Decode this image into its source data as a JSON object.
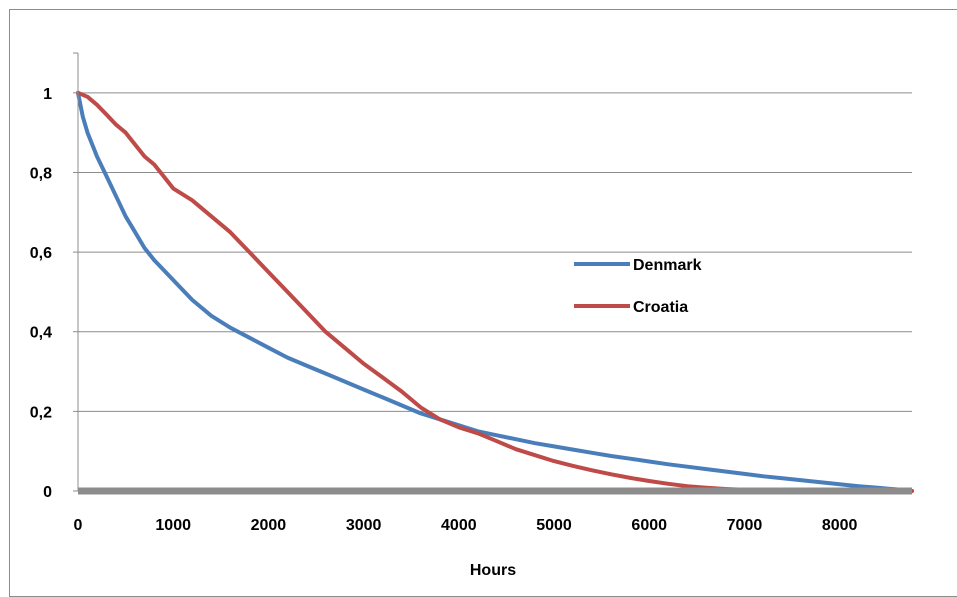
{
  "chart_data": {
    "type": "line",
    "title": "",
    "xlabel": "Hours",
    "ylabel": "",
    "xlim": [
      0,
      8760
    ],
    "ylim": [
      0,
      1.1
    ],
    "x_ticks": [
      0,
      1000,
      2000,
      3000,
      4000,
      5000,
      6000,
      7000,
      8000
    ],
    "x_tick_labels": [
      "0",
      "1000",
      "2000",
      "3000",
      "4000",
      "5000",
      "6000",
      "7000",
      "8000"
    ],
    "y_ticks": [
      0,
      0.2,
      0.4,
      0.6,
      0.8,
      1
    ],
    "y_tick_labels": [
      "0",
      "0,2",
      "0,4",
      "0,6",
      "0,8",
      "1"
    ],
    "grid": "horizontal",
    "legend_position": "right",
    "series": [
      {
        "name": "Denmark",
        "color": "#4a7ebb",
        "x": [
          0,
          50,
          100,
          200,
          300,
          400,
          500,
          600,
          700,
          800,
          1000,
          1200,
          1400,
          1600,
          1800,
          2000,
          2200,
          2400,
          2600,
          2800,
          3000,
          3200,
          3400,
          3600,
          3800,
          4000,
          4200,
          4400,
          4600,
          4800,
          5000,
          5200,
          5400,
          5600,
          5800,
          6000,
          6200,
          6400,
          6600,
          6800,
          7000,
          7200,
          7400,
          7600,
          7800,
          8000,
          8200,
          8400,
          8600,
          8760
        ],
        "y": [
          1.0,
          0.94,
          0.9,
          0.84,
          0.79,
          0.74,
          0.69,
          0.65,
          0.61,
          0.58,
          0.53,
          0.48,
          0.44,
          0.41,
          0.385,
          0.36,
          0.335,
          0.315,
          0.295,
          0.275,
          0.255,
          0.235,
          0.215,
          0.195,
          0.18,
          0.165,
          0.15,
          0.14,
          0.13,
          0.12,
          0.112,
          0.104,
          0.096,
          0.088,
          0.081,
          0.074,
          0.067,
          0.061,
          0.055,
          0.049,
          0.043,
          0.037,
          0.032,
          0.027,
          0.022,
          0.017,
          0.012,
          0.008,
          0.004,
          0.0
        ]
      },
      {
        "name": "Croatia",
        "color": "#be4b48",
        "x": [
          0,
          100,
          200,
          300,
          400,
          500,
          600,
          700,
          800,
          900,
          1000,
          1200,
          1400,
          1600,
          1800,
          2000,
          2200,
          2400,
          2600,
          2800,
          3000,
          3200,
          3400,
          3600,
          3800,
          4000,
          4200,
          4400,
          4600,
          4800,
          5000,
          5200,
          5400,
          5600,
          5800,
          6000,
          6200,
          6400,
          6600,
          6800,
          7000,
          7200,
          7400,
          7600,
          8000,
          8400,
          8760
        ],
        "y": [
          1.0,
          0.99,
          0.97,
          0.945,
          0.92,
          0.9,
          0.87,
          0.84,
          0.82,
          0.79,
          0.76,
          0.73,
          0.69,
          0.65,
          0.6,
          0.55,
          0.5,
          0.45,
          0.4,
          0.36,
          0.32,
          0.285,
          0.25,
          0.21,
          0.18,
          0.16,
          0.145,
          0.125,
          0.105,
          0.09,
          0.075,
          0.063,
          0.052,
          0.042,
          0.033,
          0.025,
          0.018,
          0.012,
          0.008,
          0.005,
          0.003,
          0.002,
          0.001,
          0.0,
          0.0,
          0.0,
          0.0
        ]
      }
    ]
  }
}
